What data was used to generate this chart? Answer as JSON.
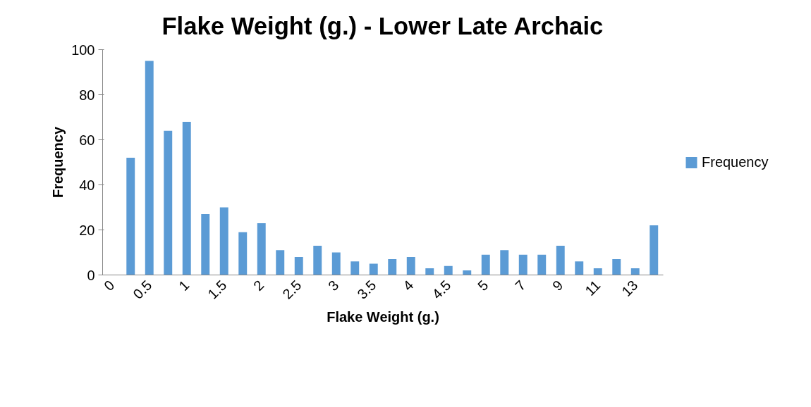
{
  "chart_data": {
    "type": "bar",
    "title": "Flake Weight (g.) - Lower Late Archaic",
    "xlabel": "Flake Weight (g.)",
    "ylabel": "Frequency",
    "categories": [
      "0",
      null,
      "0.5",
      null,
      "1",
      null,
      "1.5",
      null,
      "2",
      null,
      "2.5",
      null,
      "3",
      null,
      "3.5",
      null,
      "4",
      null,
      "4.5",
      null,
      "5",
      null,
      "7",
      null,
      "9",
      null,
      "11",
      null,
      "13",
      null
    ],
    "series": [
      {
        "name": "Frequency",
        "color": "#5b9bd5",
        "values": [
          0,
          52,
          95,
          64,
          68,
          27,
          30,
          19,
          23,
          11,
          8,
          13,
          10,
          6,
          5,
          7,
          8,
          3,
          4,
          2,
          9,
          11,
          9,
          9,
          13,
          6,
          3,
          7,
          3,
          22
        ]
      }
    ],
    "ylim": [
      0,
      100
    ],
    "yticks": [
      0,
      20,
      40,
      60,
      80,
      100
    ],
    "grid": false,
    "legend": "right"
  }
}
